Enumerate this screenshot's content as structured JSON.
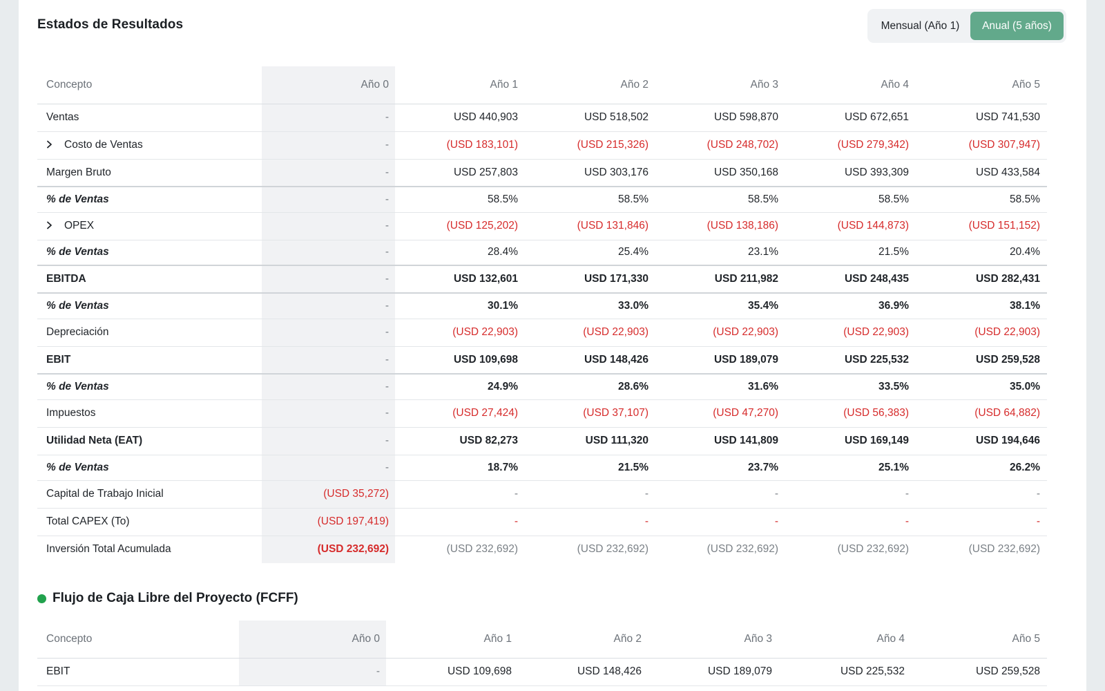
{
  "income": {
    "title": "Estados de Resultados",
    "toggle": {
      "monthly_label": "Mensual (Año 1)",
      "annual_label": "Anual (5 años)"
    },
    "columns": [
      "Concepto",
      "Año 0",
      "Año 1",
      "Año 2",
      "Año 3",
      "Año 4",
      "Año 5"
    ],
    "rows": [
      {
        "label": "Ventas",
        "values": [
          "-",
          "USD 440,903",
          "USD 518,502",
          "USD 598,870",
          "USD 672,651",
          "USD 741,530"
        ]
      },
      {
        "label": "Costo de Ventas",
        "expandable": true,
        "values": [
          "-",
          "(USD 183,101)",
          "(USD 215,326)",
          "(USD 248,702)",
          "(USD 279,342)",
          "(USD 307,947)"
        ]
      },
      {
        "label": "Margen Bruto",
        "values": [
          "-",
          "USD 257,803",
          "USD 303,176",
          "USD 350,168",
          "USD 393,309",
          "USD 433,584"
        ]
      },
      {
        "label": "% de Ventas",
        "values": [
          "-",
          "58.5%",
          "58.5%",
          "58.5%",
          "58.5%",
          "58.5%"
        ]
      },
      {
        "label": "OPEX",
        "expandable": true,
        "values": [
          "-",
          "(USD 125,202)",
          "(USD 131,846)",
          "(USD 138,186)",
          "(USD 144,873)",
          "(USD 151,152)"
        ]
      },
      {
        "label": "% de Ventas",
        "values": [
          "-",
          "28.4%",
          "25.4%",
          "23.1%",
          "21.5%",
          "20.4%"
        ]
      },
      {
        "label": "EBITDA",
        "values": [
          "-",
          "USD 132,601",
          "USD 171,330",
          "USD 211,982",
          "USD 248,435",
          "USD 282,431"
        ]
      },
      {
        "label": "% de Ventas",
        "values": [
          "-",
          "30.1%",
          "33.0%",
          "35.4%",
          "36.9%",
          "38.1%"
        ]
      },
      {
        "label": "Depreciación",
        "values": [
          "-",
          "(USD 22,903)",
          "(USD 22,903)",
          "(USD 22,903)",
          "(USD 22,903)",
          "(USD 22,903)"
        ]
      },
      {
        "label": "EBIT",
        "values": [
          "-",
          "USD 109,698",
          "USD 148,426",
          "USD 189,079",
          "USD 225,532",
          "USD 259,528"
        ]
      },
      {
        "label": "% de Ventas",
        "values": [
          "-",
          "24.9%",
          "28.6%",
          "31.6%",
          "33.5%",
          "35.0%"
        ]
      },
      {
        "label": "Impuestos",
        "values": [
          "-",
          "(USD 27,424)",
          "(USD 37,107)",
          "(USD 47,270)",
          "(USD 56,383)",
          "(USD 64,882)"
        ]
      },
      {
        "label": "Utilidad Neta (EAT)",
        "values": [
          "-",
          "USD 82,273",
          "USD 111,320",
          "USD 141,809",
          "USD 169,149",
          "USD 194,646"
        ]
      },
      {
        "label": "% de Ventas",
        "values": [
          "-",
          "18.7%",
          "21.5%",
          "23.7%",
          "25.1%",
          "26.2%"
        ]
      },
      {
        "label": "Capital de Trabajo Inicial",
        "values": [
          "(USD 35,272)",
          "-",
          "-",
          "-",
          "-",
          "-"
        ]
      },
      {
        "label": "Total CAPEX (To)",
        "values": [
          "(USD 197,419)",
          "-",
          "-",
          "-",
          "-",
          "-"
        ]
      },
      {
        "label": "Inversión Total Acumulada",
        "values": [
          "(USD 232,692)",
          "(USD 232,692)",
          "(USD 232,692)",
          "(USD 232,692)",
          "(USD 232,692)",
          "(USD 232,692)"
        ]
      }
    ]
  },
  "fcff": {
    "title": "Flujo de Caja Libre del Proyecto (FCFF)",
    "columns": [
      "Concepto",
      "Año 0",
      "Año 1",
      "Año 2",
      "Año 3",
      "Año 4",
      "Año 5"
    ],
    "rows": [
      {
        "label": "EBIT",
        "values": [
          "-",
          "USD 109,698",
          "USD 148,426",
          "USD 189,079",
          "USD 225,532",
          "USD 259,528"
        ]
      }
    ]
  },
  "colors": {
    "accent": "#62a98b",
    "negative": "#d62b2b",
    "dot": "#22a24d"
  }
}
